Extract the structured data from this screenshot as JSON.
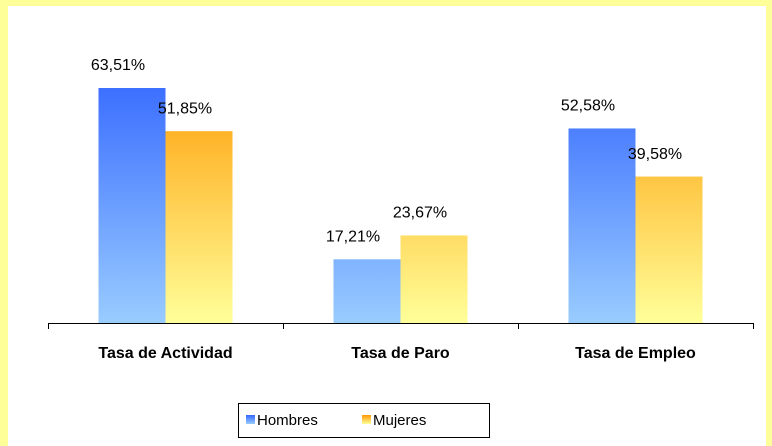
{
  "chart_data": {
    "type": "bar",
    "categories": [
      "Tasa de Actividad",
      "Tasa de Paro",
      "Tasa de Empleo"
    ],
    "series": [
      {
        "name": "Hombres",
        "color": "#3366ff",
        "values": [
          63.51,
          17.21,
          52.58
        ],
        "value_labels": [
          "63,51%",
          "17,21%",
          "52,58%"
        ]
      },
      {
        "name": "Mujeres",
        "color": "#ff9900",
        "values": [
          51.85,
          23.67,
          39.58
        ],
        "value_labels": [
          "51,85%",
          "23,67%",
          "39,58%"
        ]
      }
    ],
    "ylim": [
      0,
      70
    ],
    "legend": "bottom"
  }
}
